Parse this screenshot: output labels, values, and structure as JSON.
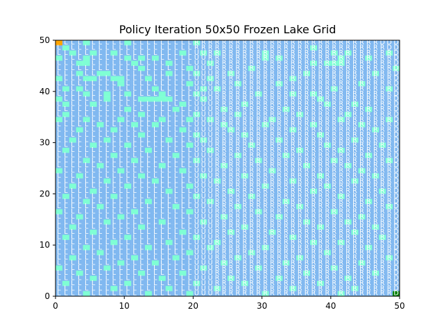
{
  "chart_data": {
    "type": "heatmap",
    "title": "Policy Iteration 50x50 Frozen Lake Grid",
    "xlabel": "",
    "ylabel": "",
    "xlim": [
      0,
      50
    ],
    "ylim": [
      0,
      50
    ],
    "x_ticks": [
      "0",
      "10",
      "20",
      "30",
      "40",
      "50"
    ],
    "y_ticks": [
      "0",
      "10",
      "20",
      "30",
      "40",
      "50"
    ],
    "grid_size": [
      50,
      50
    ],
    "start_cell": [
      0,
      49
    ],
    "goal_cell": [
      49,
      0
    ],
    "colors": {
      "frozen": "#80b8f0",
      "hole": "#7fffd4",
      "start": "#ffa500",
      "goal": "#008000",
      "letter": "#ffffff"
    },
    "policy_letter_left_region": "L",
    "policy_rows": [
      "UUUUUUUUUUUUUUDUUURRRRRRRRRRRRRRRRRRRRRRRRRRRRRDDD",
      "UUUUUUUUUUUUUUUUUUUURRRRRRRRRRRRRRRRRRRRRRRRRRRRDD",
      "UUUUUUUUUUUUUUUUUUUUUURRRRRRRRRRRRRRRRRRRRRRRRRRRD",
      "UUUUUUUUUUUUUUUUUUUUUURRRRRRRRRRRRRRRRRRRRRRRRRRRD",
      "UUUUUUUUUUUUUUUUUUUUUUURRRRRRRRRRRRRRRRRRRRRRRRRRD",
      "UUUUUUUUUUUUUUUUUUUUUUURRRRRRRRRRRRRRRRRRRRRRRRRRD",
      "UUUUUUUUUUUUUUUUUUUUUUURRRRRRRRRRRRRRRRRRRRRRRRRRD",
      "UUUUUUUUUUUUUUUUUUUUUUURRRRRRRRRRRRRRRRRRRRRRRRRRD",
      "UUUUUUUUUUUUUUUUUUUUUUURRRRRRRRRRRRRRRRRRRRRRRRRRD",
      "UUUUUUUUUUUUUUUUUUUUUUURRRRRRRRRRRRRRRRRRRRRRRRRRD",
      "UUUUUUUUUUUUUUUUUUUUUUURRRRRRRRRRRRRRRRRRRRRRRRRRD",
      "UUUUUUUUUUUUUUUUUUUUUUURRRRRRRRRRRRRRRRRRRRRRRRRRD",
      "UUUUUUUUUUUUUUUUUUUUUUURRRRRRRRRRRRRRRRRRRRRRRRRRD",
      "UUUUUUUUUUUUUUUUUUUUUUURRRRRRRRRRRRRRRRRRRRRRRRRRD",
      "UUUUUUUUUUUUUUUUUUUUUUURRRRRRRRRRRRRRRRRRRRRRRRRRD",
      "UUUUUUUUUUUUUUUUUUUUUUURRRRRRRRRRRRRRRRRRRRRRRRRRD",
      "UUUUUUUUUUUUUUUUUUUUUUURRRRRRRRRRRRRRRRRRRRRRRRRRD",
      "UUUUUUUUUUUUUUUUUUUUUUURRRRRRRRRRRRRRRRRRRRRRRRRRD",
      "UUUUUUUUUUUUUUUUUUUUUUURRRRRRRRRRRRRRRRRRRRRRRRRRD",
      "UUUUUUUUUUUUUUUUUUUUUUURRRRRRRRRRRRRRRRRRRRRRRRRRD",
      "UUUUUUUUUUUUUUUUUUUUUUURRRRRRRRRRRRRRRRRRRRRRRRRRD",
      "UUUUUUUUUUUUUUUUUUUUUUURRRRRRRRRRRRRRRRRRRRRRRRRRD",
      "UUUUUUUUUUUUUUUUUUUUUUURRRRRRRRRRRRRRRRRRRRRRRRRRD",
      "UUUUUUUUUUUUUUUUUUUUUUURRRRRRRRRRRRRRRRRRRRRRRRRRD",
      "UUUUUUUUUUUUUUUUUUUUUUURRRRRRRRRRRRRRRRRRRRRRRRRRD",
      "UUUUUUUUUUUUUUUUUUUUUUURRRRRRRRRRRRRRRRRRRRRRRRRRD",
      "UUUUUUUUUUUUUUUUUUUUUUURRRRRRRRRRRRRRRRRRRRRRRRRRD",
      "UUUUUUUUUUUUUUUUUUUUUUURRRRRRRRRRRRRRRRRRRRRRRRRRD",
      "UUUUUUUUUUUUUUUUUUUUUUURRRRRRRRRRRRRRRRRRRRRRRRRRD",
      "UUUUUUUUUUUUUUUUUUUUUUURRRRRRRRRRRRRRRRRRRRRRRRRRD",
      "UUUUUUUUUUUUUUUUUUUUUUURRRRRRRRRRRRRRRRRRRRRRRRRRD",
      "UUUUUUUUUUUUUUUUUUUUUUURRRRRRRRRRRRRRRRRRRRRRRRRRD",
      "UUUUUUUUUUUUUUUUUUUUUUURRRRRRRRRRRRRRRRRRRRRRRRRRD",
      "UUUUUUUUUUUUUUUUUUUUUUURRRRRRRRRRRRRRRRRRRRRRRRRRD",
      "UUUUUUUUUUUUUUUUUUUUUUURRRRRRRRRRRRRRRRRRRRRRRRRRD",
      "UUUUUUUUUUUUUUUUUUUUUUURRRRRRRRRRRRRRRRRRRRRRRRRRD",
      "UUUUUUUUUUUUUUUUUUUUUUURRRRRRRRRRRRRRRRRRRRRRRRRRD",
      "UUUUUUUUUUUUUUUUUUUUUUURRRRRRRRRRRRRRRRRRRRRRRRRRD",
      "UUUUUUUUUUUUUUUUUUUUUUURRRRRRRRRRRRRRRRRRRRRRRRRRD",
      "UUUUUUUUUUUUUUUUUUUUUUURRRRRRRRRRRRRRRRRRRRRRRRRRD",
      "UUUUUUUUUUUUUUUUUUUUUUURRRRRRRRRRRRRRRRRRRRRRRRRRD",
      "UUUUUUUUUUUUUUUUUUUUUUURRRRRRRRRRRRRRRRRRRRRRRRRRD",
      "UUUUUUUUUUUUUUUUUUUUUUURRRRRRRRRRRRRRRRRRRRRRRRRRD",
      "UUUUUUUUUUUUUUUUUUUUUUURRRRRRRRRRRRRRRRRRRRRRRRRRD",
      "UUUUUUUUUUUUUUUUUUUUUUURRRRRRRRRRRRRRRRRRRRRRRRRRD",
      "UUUUUUUUUUUUUUUUUUUUUUURRRRRRRRRRRRRRRRRRRRRRRRRRD",
      "UUUUUUUUUUUUUUUUUUUUUUURRRRRRRRRRRRRRRRRRRRRRRRRRD",
      "UUUUUUUUUUUUUUUUUUUUUUURRRRRRRRRRRRRRRRRRRRRRRRRRD",
      "UUUUUUUUUUUUUUUUUUUUUUURRRRRRRRRRRRRRRRRRRRRRRRRRD",
      "UUUUUUUUUUUUUUUUUUUUUUURRRRRRRRRRRRRRRRRRRRRRRRRRD"
    ],
    "holes": [
      [
        4,
        0
      ],
      [
        10,
        0
      ],
      [
        20,
        0
      ],
      [
        1,
        1
      ],
      [
        37,
        1
      ],
      [
        2,
        2
      ],
      [
        5,
        2
      ],
      [
        8,
        2
      ],
      [
        18,
        2
      ],
      [
        21,
        2
      ],
      [
        23,
        2
      ],
      [
        30,
        2
      ],
      [
        40,
        2
      ],
      [
        42,
        2
      ],
      [
        48,
        2
      ],
      [
        0,
        3
      ],
      [
        4,
        3
      ],
      [
        10,
        3
      ],
      [
        12,
        3
      ],
      [
        14,
        3
      ],
      [
        30,
        3
      ],
      [
        32,
        3
      ],
      [
        41,
        3
      ],
      [
        45,
        3
      ],
      [
        3,
        4
      ],
      [
        4,
        4
      ],
      [
        11,
        4
      ],
      [
        16,
        4
      ],
      [
        22,
        4
      ],
      [
        37,
        4
      ],
      [
        39,
        4
      ],
      [
        40,
        4
      ],
      [
        41,
        4
      ],
      [
        12,
        5
      ],
      [
        19,
        5
      ],
      [
        28,
        5
      ],
      [
        49,
        5
      ],
      [
        3,
        6
      ],
      [
        6,
        6
      ],
      [
        7,
        6
      ],
      [
        16,
        6
      ],
      [
        20,
        6
      ],
      [
        25,
        6
      ],
      [
        36,
        6
      ],
      [
        46,
        6
      ],
      [
        0,
        7
      ],
      [
        4,
        7
      ],
      [
        5,
        7
      ],
      [
        8,
        7
      ],
      [
        9,
        7
      ],
      [
        13,
        7
      ],
      [
        22,
        7
      ],
      [
        34,
        7
      ],
      [
        9,
        8
      ],
      [
        19,
        8
      ],
      [
        26,
        8
      ],
      [
        32,
        8
      ],
      [
        44,
        8
      ],
      [
        1,
        9
      ],
      [
        3,
        9
      ],
      [
        14,
        9
      ],
      [
        21,
        9
      ],
      [
        23,
        9
      ],
      [
        40,
        9
      ],
      [
        48,
        9
      ],
      [
        4,
        10
      ],
      [
        7,
        10
      ],
      [
        10,
        10
      ],
      [
        15,
        10
      ],
      [
        20,
        10
      ],
      [
        29,
        10
      ],
      [
        34,
        10
      ],
      [
        37,
        10
      ],
      [
        0,
        11
      ],
      [
        7,
        11
      ],
      [
        12,
        11
      ],
      [
        13,
        11
      ],
      [
        14,
        11
      ],
      [
        15,
        11
      ],
      [
        16,
        11
      ],
      [
        21,
        11
      ],
      [
        38,
        11
      ],
      [
        1,
        12
      ],
      [
        5,
        12
      ],
      [
        18,
        12
      ],
      [
        27,
        12
      ],
      [
        39,
        12
      ],
      [
        43,
        12
      ],
      [
        10,
        13
      ],
      [
        17,
        13
      ],
      [
        24,
        13
      ],
      [
        33,
        13
      ],
      [
        45,
        13
      ],
      [
        1,
        14
      ],
      [
        12,
        14
      ],
      [
        20,
        14
      ],
      [
        26,
        14
      ],
      [
        35,
        14
      ],
      [
        42,
        14
      ],
      [
        0,
        15
      ],
      [
        4,
        15
      ],
      [
        9,
        15
      ],
      [
        15,
        15
      ],
      [
        19,
        15
      ],
      [
        22,
        15
      ],
      [
        31,
        15
      ],
      [
        41,
        15
      ],
      [
        48,
        15
      ],
      [
        6,
        16
      ],
      [
        11,
        16
      ],
      [
        14,
        16
      ],
      [
        24,
        16
      ],
      [
        30,
        16
      ],
      [
        37,
        16
      ],
      [
        44,
        16
      ],
      [
        3,
        17
      ],
      [
        8,
        17
      ],
      [
        18,
        17
      ],
      [
        25,
        17
      ],
      [
        34,
        17
      ],
      [
        46,
        17
      ],
      [
        12,
        18
      ],
      [
        20,
        18
      ],
      [
        27,
        18
      ],
      [
        38,
        18
      ],
      [
        2,
        19
      ],
      [
        7,
        19
      ],
      [
        16,
        19
      ],
      [
        21,
        19
      ],
      [
        32,
        19
      ],
      [
        43,
        19
      ],
      [
        5,
        20
      ],
      [
        10,
        20
      ],
      [
        19,
        20
      ],
      [
        28,
        20
      ],
      [
        39,
        20
      ],
      [
        47,
        20
      ],
      [
        1,
        21
      ],
      [
        13,
        21
      ],
      [
        22,
        21
      ],
      [
        35,
        21
      ],
      [
        41,
        21
      ],
      [
        8,
        22
      ],
      [
        17,
        22
      ],
      [
        26,
        22
      ],
      [
        33,
        22
      ],
      [
        45,
        22
      ],
      [
        4,
        23
      ],
      [
        11,
        23
      ],
      [
        20,
        23
      ],
      [
        29,
        23
      ],
      [
        40,
        23
      ],
      [
        48,
        23
      ],
      [
        6,
        24
      ],
      [
        15,
        24
      ],
      [
        24,
        24
      ],
      [
        36,
        24
      ],
      [
        42,
        24
      ],
      [
        0,
        25
      ],
      [
        9,
        25
      ],
      [
        18,
        25
      ],
      [
        31,
        25
      ],
      [
        44,
        25
      ],
      [
        3,
        26
      ],
      [
        12,
        26
      ],
      [
        21,
        26
      ],
      [
        27,
        26
      ],
      [
        38,
        26
      ],
      [
        46,
        26
      ],
      [
        7,
        27
      ],
      [
        14,
        27
      ],
      [
        23,
        27
      ],
      [
        34,
        27
      ],
      [
        43,
        27
      ],
      [
        2,
        28
      ],
      [
        10,
        28
      ],
      [
        19,
        28
      ],
      [
        30,
        28
      ],
      [
        39,
        28
      ],
      [
        5,
        29
      ],
      [
        16,
        29
      ],
      [
        25,
        29
      ],
      [
        37,
        29
      ],
      [
        47,
        29
      ],
      [
        1,
        30
      ],
      [
        8,
        30
      ],
      [
        20,
        30
      ],
      [
        28,
        30
      ],
      [
        41,
        30
      ],
      [
        4,
        31
      ],
      [
        13,
        31
      ],
      [
        22,
        31
      ],
      [
        33,
        31
      ],
      [
        45,
        31
      ],
      [
        6,
        32
      ],
      [
        17,
        32
      ],
      [
        26,
        32
      ],
      [
        35,
        32
      ],
      [
        48,
        32
      ],
      [
        0,
        33
      ],
      [
        11,
        33
      ],
      [
        19,
        33
      ],
      [
        29,
        33
      ],
      [
        40,
        33
      ],
      [
        3,
        34
      ],
      [
        9,
        34
      ],
      [
        24,
        34
      ],
      [
        32,
        34
      ],
      [
        44,
        34
      ],
      [
        7,
        35
      ],
      [
        15,
        35
      ],
      [
        21,
        35
      ],
      [
        36,
        35
      ],
      [
        42,
        35
      ],
      [
        2,
        36
      ],
      [
        12,
        36
      ],
      [
        27,
        36
      ],
      [
        38,
        36
      ],
      [
        46,
        36
      ],
      [
        5,
        37
      ],
      [
        18,
        37
      ],
      [
        25,
        37
      ],
      [
        31,
        37
      ],
      [
        43,
        37
      ],
      [
        1,
        38
      ],
      [
        10,
        38
      ],
      [
        20,
        38
      ],
      [
        34,
        38
      ],
      [
        47,
        38
      ],
      [
        8,
        39
      ],
      [
        16,
        39
      ],
      [
        23,
        39
      ],
      [
        37,
        39
      ],
      [
        41,
        39
      ],
      [
        4,
        40
      ],
      [
        13,
        40
      ],
      [
        22,
        40
      ],
      [
        30,
        40
      ],
      [
        45,
        40
      ],
      [
        6,
        41
      ],
      [
        19,
        41
      ],
      [
        28,
        41
      ],
      [
        39,
        41
      ],
      [
        2,
        42
      ],
      [
        11,
        42
      ],
      [
        17,
        42
      ],
      [
        26,
        42
      ],
      [
        35,
        42
      ],
      [
        48,
        42
      ],
      [
        9,
        43
      ],
      [
        14,
        43
      ],
      [
        24,
        43
      ],
      [
        33,
        43
      ],
      [
        44,
        43
      ],
      [
        0,
        44
      ],
      [
        7,
        44
      ],
      [
        21,
        44
      ],
      [
        29,
        44
      ],
      [
        40,
        44
      ],
      [
        3,
        45
      ],
      [
        12,
        45
      ],
      [
        18,
        45
      ],
      [
        36,
        45
      ],
      [
        46,
        45
      ],
      [
        5,
        46
      ],
      [
        15,
        46
      ],
      [
        25,
        46
      ],
      [
        32,
        46
      ],
      [
        42,
        46
      ],
      [
        1,
        47
      ],
      [
        10,
        47
      ],
      [
        20,
        47
      ],
      [
        27,
        47
      ],
      [
        38,
        47
      ],
      [
        8,
        48
      ],
      [
        16,
        48
      ],
      [
        23,
        48
      ],
      [
        34,
        48
      ],
      [
        43,
        48
      ],
      [
        4,
        49
      ],
      [
        13,
        49
      ],
      [
        19,
        49
      ],
      [
        30,
        49
      ],
      [
        41,
        49
      ]
    ]
  }
}
